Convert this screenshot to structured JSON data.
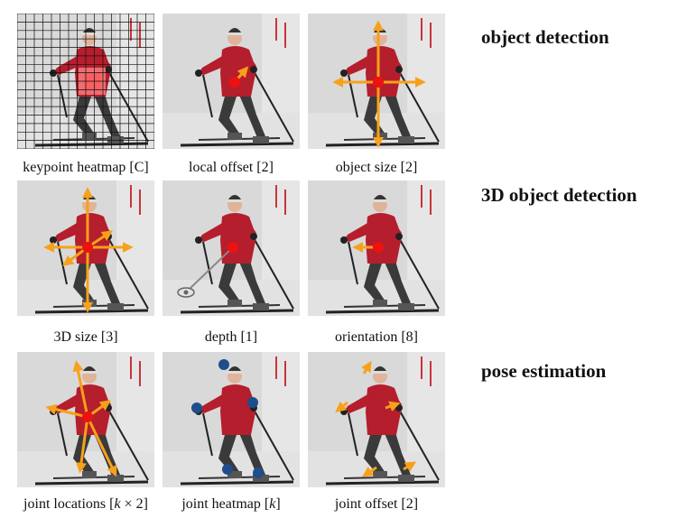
{
  "tasks": {
    "object_detection": "object detection",
    "detection_3d": "3D object detection",
    "pose_estimation": "pose estimation"
  },
  "rows": [
    {
      "panels": [
        {
          "caption": "keypoint heatmap [C]"
        },
        {
          "caption": "local offset [2]"
        },
        {
          "caption": "object size [2]"
        }
      ]
    },
    {
      "panels": [
        {
          "caption": "3D size [3]"
        },
        {
          "caption": "depth [1]"
        },
        {
          "caption": "orientation [8]"
        }
      ]
    },
    {
      "panels": [
        {
          "caption_pre": "joint locations [",
          "caption_var": "k",
          "caption_post": " × 2]"
        },
        {
          "caption_pre": "joint heatmap [",
          "caption_var": "k",
          "caption_post": "]"
        },
        {
          "caption": "joint offset [2]"
        }
      ]
    }
  ],
  "colors": {
    "arrow": "#f7a11a",
    "center": "#ee1111",
    "joint": "#1f4e8c",
    "jacket": "#b51e2c",
    "pants": "#3a3a3a",
    "snow": "#d9d9d9"
  }
}
